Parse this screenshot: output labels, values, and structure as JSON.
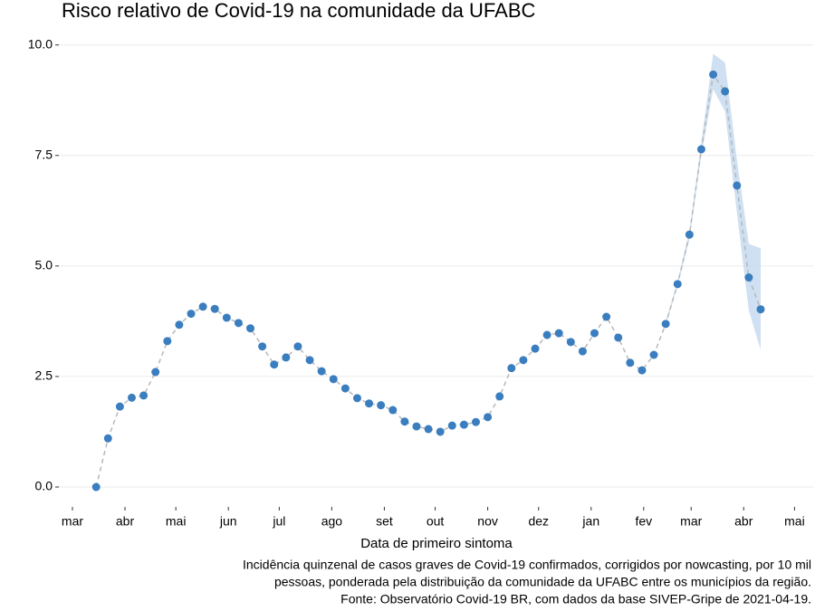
{
  "chart_data": {
    "type": "line",
    "title": "Risco relativo de Covid-19 na comunidade da UFABC",
    "x_label": "Data de primeiro sintoma",
    "caption": [
      "Incidência quinzenal de casos graves de Covid-19 confirmados, corrigidos por nowcasting, por 10 mil",
      "pessoas, ponderada pela distribuição da comunidade da UFABC entre os municípios da região.",
      "Fonte: Observatório Covid-19 BR, com dados da base SIVEP-Gripe de 2021-04-19."
    ],
    "x": [
      14,
      21,
      28,
      35,
      42,
      49,
      56,
      63,
      70,
      77,
      84,
      91,
      98,
      105,
      112,
      119,
      126,
      133,
      140,
      147,
      154,
      161,
      168,
      175,
      182,
      189,
      196,
      203,
      210,
      217,
      224,
      231,
      238,
      245,
      252,
      259,
      266,
      273,
      280,
      287,
      294,
      301,
      308,
      315,
      322,
      329,
      336,
      343,
      350,
      357,
      364,
      371,
      378,
      385,
      392,
      399,
      406
    ],
    "values": [
      0,
      1.1,
      1.82,
      2.02,
      2.07,
      2.6,
      3.3,
      3.67,
      3.92,
      4.08,
      4.03,
      3.83,
      3.71,
      3.59,
      3.18,
      2.77,
      2.93,
      3.18,
      2.87,
      2.62,
      2.44,
      2.23,
      2.01,
      1.89,
      1.85,
      1.74,
      1.48,
      1.37,
      1.31,
      1.25,
      1.39,
      1.41,
      1.47,
      1.58,
      2.05,
      2.69,
      2.87,
      3.13,
      3.44,
      3.48,
      3.28,
      3.07,
      3.48,
      3.85,
      3.38,
      2.81,
      2.64,
      2.99,
      3.69,
      4.59,
      5.71,
      7.64,
      9.33,
      8.95,
      6.82,
      4.74,
      4.02
    ],
    "color": "#3a7ebf",
    "line_color": "#b8b8b8",
    "band": {
      "x": [
        350,
        357,
        364,
        371,
        378,
        385,
        392,
        399,
        406
      ],
      "lower": [
        3.65,
        4.55,
        5.6,
        7.5,
        9.0,
        8.5,
        6.2,
        4.0,
        3.1
      ],
      "upper": [
        3.75,
        4.65,
        5.8,
        7.8,
        9.8,
        9.6,
        7.4,
        5.5,
        5.4
      ],
      "color": "#c6dbef"
    },
    "xlim": [
      -8,
      437
    ],
    "xticks": [
      {
        "value": 0,
        "label": "mar"
      },
      {
        "value": 31,
        "label": "abr"
      },
      {
        "value": 61,
        "label": "mai"
      },
      {
        "value": 92,
        "label": "jun"
      },
      {
        "value": 122,
        "label": "jul"
      },
      {
        "value": 153,
        "label": "ago"
      },
      {
        "value": 184,
        "label": "set"
      },
      {
        "value": 214,
        "label": "out"
      },
      {
        "value": 245,
        "label": "nov"
      },
      {
        "value": 275,
        "label": "dez"
      },
      {
        "value": 306,
        "label": "jan"
      },
      {
        "value": 337,
        "label": "fev"
      },
      {
        "value": 365,
        "label": "mar"
      },
      {
        "value": 396,
        "label": "abr"
      },
      {
        "value": 426,
        "label": "mai"
      }
    ],
    "ylim": [
      -0.45,
      10.3
    ],
    "yticks": [
      {
        "value": 0,
        "label": "0.0"
      },
      2.5,
      {
        "value": 5,
        "label": "5.0"
      },
      7.5,
      {
        "value": 10,
        "label": "10.0"
      }
    ],
    "grid": true
  }
}
